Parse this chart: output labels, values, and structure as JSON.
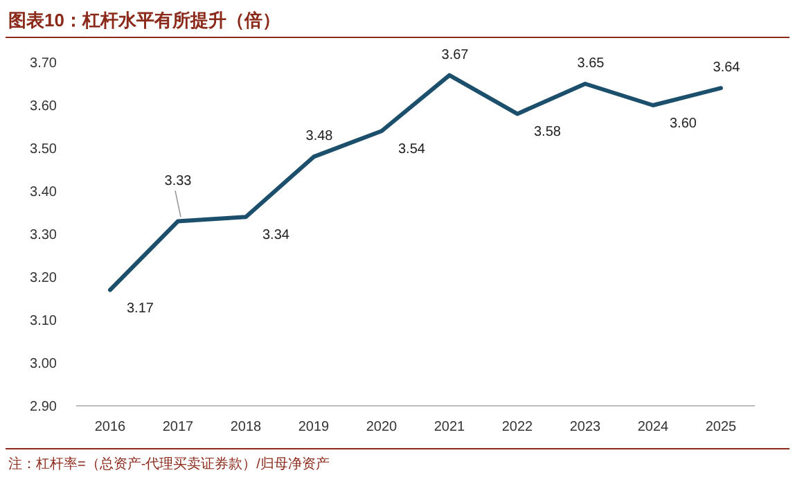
{
  "chart_data": {
    "type": "line",
    "title": "图表10：杠杆水平有所提升（倍）",
    "categories": [
      "2016",
      "2017",
      "2018",
      "2019",
      "2020",
      "2021",
      "2022",
      "2023",
      "2024",
      "2025"
    ],
    "series": [
      {
        "color": "#1b4f6b",
        "values": [
          3.17,
          3.33,
          3.34,
          3.48,
          3.54,
          3.67,
          3.58,
          3.65,
          3.6,
          3.64
        ],
        "value_labels": [
          "3.17",
          "3.33",
          "3.34",
          "3.48",
          "3.54",
          "3.67",
          "3.58",
          "3.65",
          "3.60",
          "3.64"
        ]
      }
    ],
    "ylim": [
      2.9,
      3.7
    ],
    "yticks": [
      {
        "value": 2.9,
        "label": "2.90"
      },
      {
        "value": 3.0,
        "label": "3.00"
      },
      {
        "value": 3.1,
        "label": "3.10"
      },
      {
        "value": 3.2,
        "label": "3.20"
      },
      {
        "value": 3.3,
        "label": "3.30"
      },
      {
        "value": 3.4,
        "label": "3.40"
      },
      {
        "value": 3.5,
        "label": "3.50"
      },
      {
        "value": 3.6,
        "label": "3.60"
      },
      {
        "value": 3.7,
        "label": "3.70"
      }
    ],
    "grid": false,
    "marker": "none",
    "line_style": "solid",
    "annotations": [
      "注：杠杆率=（总资产-代理买卖证券款）/归母净资产"
    ]
  }
}
